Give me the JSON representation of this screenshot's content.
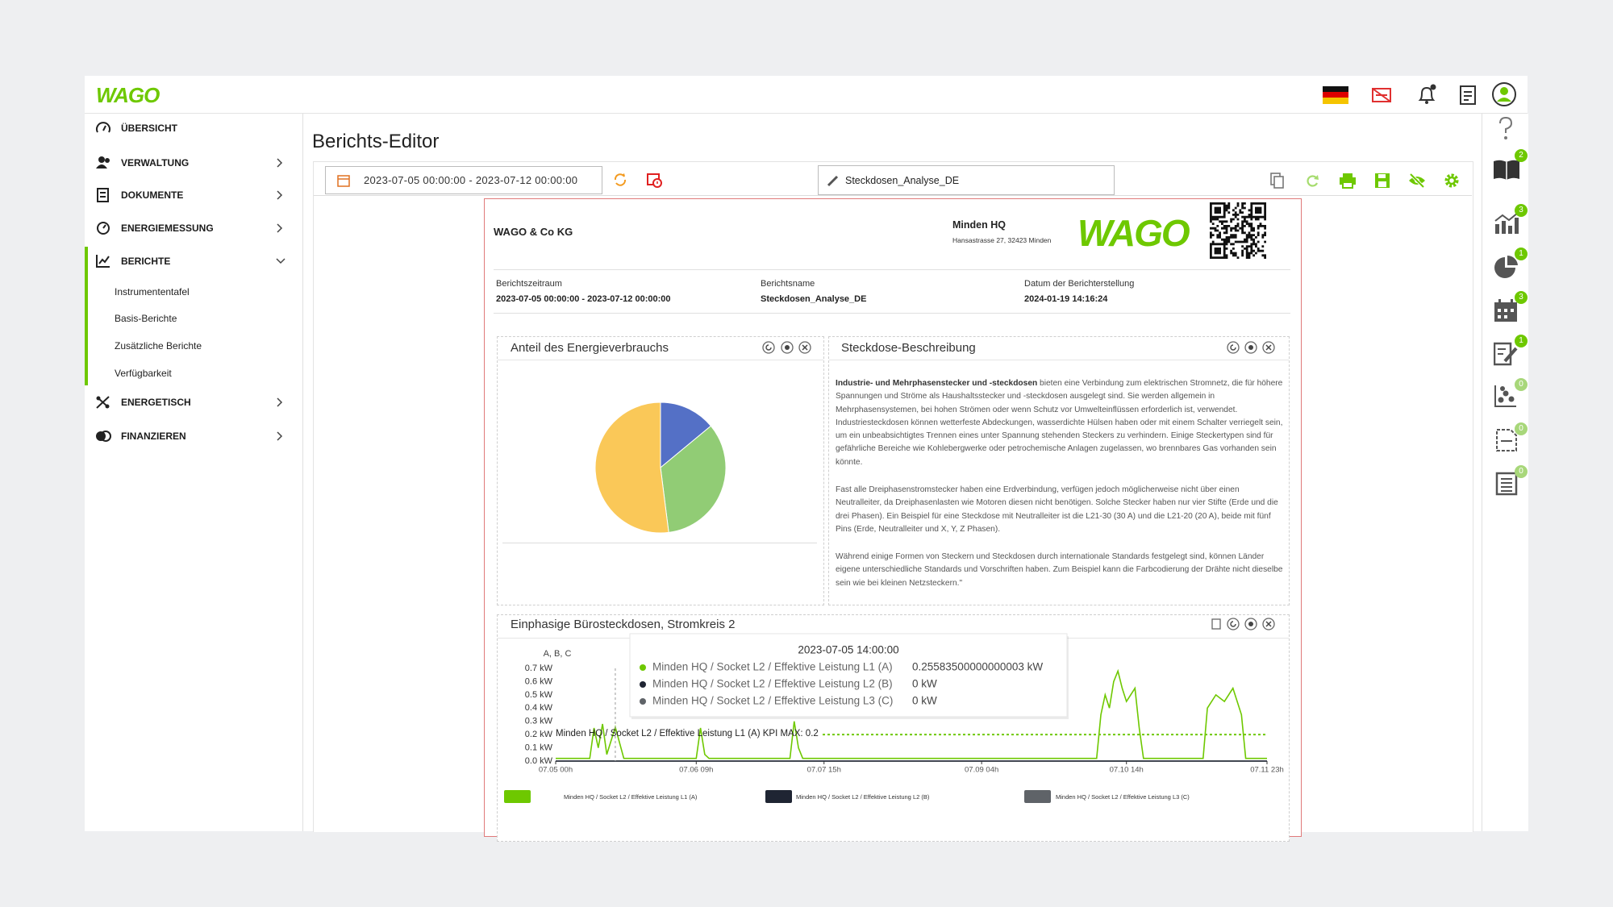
{
  "topbar": {
    "logo": "WAGO"
  },
  "sidebar": {
    "items": [
      "ÜBERSICHT",
      "VERWALTUNG",
      "DOKUMENTE",
      "ENERGIEMESSUNG",
      "BERICHTE",
      "ENERGETISCH",
      "FINANZIEREN"
    ],
    "subitems": [
      "Instrumententafel",
      "Basis-Berichte",
      "Zusätzliche Berichte",
      "Verfügbarkeit"
    ]
  },
  "editor": {
    "title": "Berichts-Editor",
    "date_range": "2023-07-05 00:00:00 - 2023-07-12 00:00:00",
    "report_name": "Steckdosen_Analyse_DE"
  },
  "report": {
    "company": "WAGO & Co KG",
    "site": "Minden HQ",
    "address": "Hansastrasse 27, 32423 Minden",
    "logo": "WAGO",
    "meta": [
      {
        "label": "Berichtszeitraum",
        "value": "2023-07-05 00:00:00 - 2023-07-12 00:00:00"
      },
      {
        "label": "Berichtsname",
        "value": "Steckdosen_Analyse_DE"
      },
      {
        "label": "Datum der Berichterstellung",
        "value": "2024-01-19 14:16:24"
      }
    ]
  },
  "description": {
    "title": "Steckdose-Beschreibung",
    "lead": "Industrie- und Mehrphasenstecker und -steckdosen",
    "paragraphs": [
      " bieten eine Verbindung zum elektrischen Stromnetz, die für höhere Spannungen und Ströme als Haushaltsstecker und -steckdosen ausgelegt sind. Sie werden allgemein in Mehrphasensystemen, bei hohen Strömen oder wenn Schutz vor Umwelteinflüssen erforderlich ist, verwendet. Industriesteckdosen können wetterfeste Abdeckungen, wasserdichte Hülsen haben oder mit einem Schalter verriegelt sein, um ein unbeabsichtigtes Trennen eines unter Spannung stehenden Steckers zu verhindern. Einige Steckertypen sind für gefährliche Bereiche wie Kohlebergwerke oder petrochemische Anlagen zugelassen, wo brennbares Gas vorhanden sein könnte.",
      "Fast alle Dreiphasenstromstecker haben eine Erdverbindung, verfügen jedoch möglicherweise nicht über einen Neutralleiter, da Dreiphasenlasten wie Motoren diesen nicht benötigen. Solche Stecker haben nur vier Stifte (Erde und die drei Phasen). Ein Beispiel für eine Steckdose mit Neutralleiter ist die L21-30 (30 A) und die L21-20 (20 A), beide mit fünf Pins (Erde, Neutralleiter und X, Y, Z Phasen).",
      "Während einige Formen von Steckern und Steckdosen durch internationale Standards festgelegt sind, können Länder eigene unterschiedliche Standards und Vorschriften haben. Zum Beispiel kann die Farbcodierung der Drähte nicht dieselbe sein wie bei kleinen Netzsteckern.\""
    ]
  },
  "right_rail": {
    "badges": [
      "2",
      "3",
      "1",
      "3",
      "1",
      "0",
      "0",
      "0"
    ]
  },
  "chart_data": [
    {
      "type": "pie",
      "title": "Anteil des Energieverbrauchs",
      "values": [
        14,
        34,
        52
      ],
      "colors": [
        "#5470c6",
        "#91cc75",
        "#fac858"
      ]
    },
    {
      "type": "line",
      "title": "Einphasige Bürosteckdosen, Stromkreis 2",
      "y_label": "A, B, C",
      "x": [
        0,
        8,
        9,
        10,
        11,
        12,
        14,
        16,
        24,
        33,
        34,
        35,
        36,
        48,
        55,
        56,
        57,
        58,
        70,
        90,
        110,
        127,
        128,
        129,
        130,
        131,
        132,
        133,
        134,
        136,
        137,
        138,
        150,
        152,
        153,
        155,
        157,
        159,
        161,
        162,
        167
      ],
      "series": [
        {
          "name": "Minden HQ / Socket L2 / Effektive Leistung L1 (A)",
          "color": "#6ec800",
          "values": [
            0.02,
            0.02,
            0.25,
            0.1,
            0.28,
            0.05,
            0.255835,
            0.02,
            0.02,
            0.02,
            0.25,
            0.05,
            0.02,
            0.02,
            0.02,
            0.3,
            0.1,
            0.02,
            0.02,
            0.02,
            0.02,
            0.02,
            0.35,
            0.5,
            0.4,
            0.6,
            0.68,
            0.55,
            0.45,
            0.55,
            0.25,
            0.02,
            0.02,
            0.02,
            0.4,
            0.5,
            0.45,
            0.55,
            0.35,
            0.02,
            0.02
          ]
        },
        {
          "name": "Minden HQ / Socket L2 / Effektive Leistung L2 (B)",
          "color": "#1f2533",
          "values": [
            0,
            0,
            0,
            0,
            0,
            0,
            0,
            0,
            0,
            0,
            0,
            0,
            0,
            0,
            0,
            0,
            0,
            0,
            0,
            0,
            0,
            0,
            0,
            0,
            0,
            0,
            0,
            0,
            0,
            0,
            0,
            0,
            0,
            0,
            0,
            0,
            0,
            0,
            0,
            0,
            0
          ]
        },
        {
          "name": "Minden HQ / Socket L2 / Effektive Leistung L3 (C)",
          "color": "#5f6368",
          "values": [
            0,
            0,
            0,
            0,
            0,
            0,
            0,
            0,
            0,
            0,
            0,
            0,
            0,
            0,
            0,
            0,
            0,
            0,
            0,
            0,
            0,
            0,
            0,
            0,
            0,
            0,
            0,
            0,
            0,
            0,
            0,
            0,
            0,
            0,
            0,
            0,
            0,
            0,
            0,
            0,
            0
          ]
        }
      ],
      "xlim": [
        0,
        167
      ],
      "xticks": [
        {
          "value": 0,
          "label": "07.05 00h"
        },
        {
          "value": 33,
          "label": "07.06 09h"
        },
        {
          "value": 63,
          "label": "07.07 15h"
        },
        {
          "value": 100,
          "label": "07.09 04h"
        },
        {
          "value": 134,
          "label": "07.10 14h"
        },
        {
          "value": 167,
          "label": "07.11 23h"
        }
      ],
      "ylim": [
        0,
        0.7
      ],
      "yticks": [
        {
          "value": 0,
          "label": "0.0 kW"
        },
        {
          "value": 0.1,
          "label": "0.1 kW"
        },
        {
          "value": 0.2,
          "label": "0.2 kW"
        },
        {
          "value": 0.3,
          "label": "0.3 kW"
        },
        {
          "value": 0.4,
          "label": "0.4 kW"
        },
        {
          "value": 0.5,
          "label": "0.5 kW"
        },
        {
          "value": 0.6,
          "label": "0.6 kW"
        },
        {
          "value": 0.7,
          "label": "0.7 kW"
        }
      ],
      "kpi": {
        "value": 0.2,
        "label": "Minden HQ / Socket L2 / Effektive Leistung L1 (A) KPI MAX: 0.2",
        "color": "#6ec800"
      },
      "tooltip": {
        "x": 14,
        "title": "2023-07-05 14:00:00",
        "rows": [
          {
            "name": "Minden HQ / Socket L2 / Effektive Leistung L1 (A)",
            "value": "0.25583500000000003 kW"
          },
          {
            "name": "Minden HQ / Socket L2 / Effektive Leistung L2 (B)",
            "value": "0 kW"
          },
          {
            "name": "Minden HQ / Socket L2 / Effektive Leistung L3 (C)",
            "value": "0 kW"
          }
        ]
      }
    }
  ]
}
